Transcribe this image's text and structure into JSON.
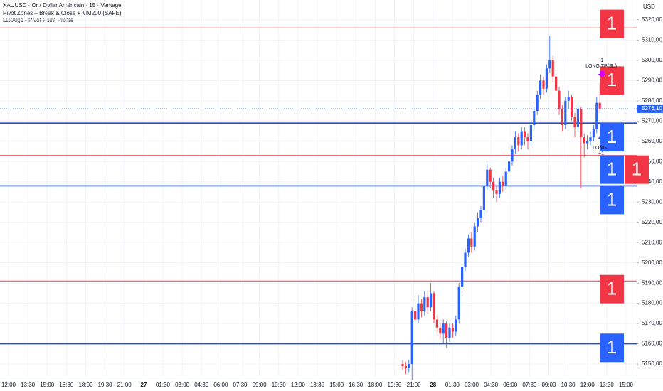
{
  "chart_data": {
    "type": "candlestick",
    "legend": [
      "XAUUSD · Or / Dollar Américain · 15 · Vantage",
      "Pivot Zones – Break & Close + MM200 (SAFE)",
      "LuxAlgo - Pivot Point Profile"
    ],
    "currency": "USD",
    "up_color": "#2962ff",
    "down_color": "#f23645",
    "ylim": [
      5143.7,
      5329.8
    ],
    "yticks": [
      {
        "value": 5150,
        "label": "5150,00"
      },
      {
        "value": 5160,
        "label": "5160,00"
      },
      {
        "value": 5170,
        "label": "5170,00"
      },
      {
        "value": 5180,
        "label": "5180,00"
      },
      {
        "value": 5190,
        "label": "5190,00"
      },
      {
        "value": 5200,
        "label": "5200,00"
      },
      {
        "value": 5210,
        "label": "5210,00"
      },
      {
        "value": 5220,
        "label": "5220,00"
      },
      {
        "value": 5230,
        "label": "5230,00"
      },
      {
        "value": 5240,
        "label": "5240,00"
      },
      {
        "value": 5250,
        "label": "5250,00"
      },
      {
        "value": 5260,
        "label": "5260,00"
      },
      {
        "value": 5270,
        "label": "5270,00"
      },
      {
        "value": 5280,
        "label": "5280,00"
      },
      {
        "value": 5290,
        "label": "5290,00"
      },
      {
        "value": 5300,
        "label": "5300,00"
      },
      {
        "value": 5310,
        "label": "5310,00"
      },
      {
        "value": 5320,
        "label": "5320,00"
      }
    ],
    "xticks": [
      "12:00",
      "13:30",
      "15:00",
      "16:30",
      "18:00",
      "19:30",
      "21:00",
      "27",
      "01:30",
      "03:00",
      "04:30",
      "06:00",
      "07:30",
      "09:00",
      "10:30",
      "12:00",
      "13:30",
      "15:00",
      "16:30",
      "18:00",
      "19:30",
      "21:00",
      "28",
      "01:30",
      "03:00",
      "04:30",
      "06:00",
      "07:30",
      "09:00",
      "10:30",
      "12:00",
      "13:30",
      "15:00"
    ],
    "grid": true,
    "open": [
      5150,
      5149,
      5148,
      5150,
      5176,
      5172,
      5180,
      5176,
      5183,
      5178,
      5185,
      5172,
      5168,
      5165,
      5170,
      5163,
      5168,
      5166,
      5172,
      5188,
      5198,
      5205,
      5212,
      5208,
      5218,
      5222,
      5226,
      5238,
      5246,
      5240,
      5236,
      5234,
      5240,
      5238,
      5245,
      5250,
      5256,
      5262,
      5258,
      5265,
      5262,
      5260,
      5268,
      5275,
      5283,
      5290,
      5286,
      5296,
      5300,
      5292,
      5285,
      5276,
      5268,
      5280,
      5282,
      5272,
      5267,
      5276,
      5262,
      5259,
      5260,
      5262,
      5266,
      5279
    ],
    "high": [
      5152,
      5151,
      5152,
      5178,
      5182,
      5184,
      5182,
      5186,
      5186,
      5190,
      5186,
      5175,
      5170,
      5172,
      5171,
      5170,
      5170,
      5174,
      5190,
      5200,
      5207,
      5214,
      5215,
      5220,
      5225,
      5228,
      5240,
      5249,
      5247,
      5242,
      5238,
      5242,
      5243,
      5247,
      5252,
      5258,
      5265,
      5264,
      5267,
      5267,
      5264,
      5270,
      5277,
      5285,
      5293,
      5292,
      5298,
      5312,
      5302,
      5294,
      5287,
      5278,
      5282,
      5285,
      5283,
      5274,
      5278,
      5277,
      5264,
      5263,
      5265,
      5268,
      5282,
      5289
    ],
    "low": [
      5147,
      5145,
      5146,
      5142,
      5170,
      5170,
      5173,
      5174,
      5175,
      5176,
      5170,
      5165,
      5162,
      5160,
      5158,
      5161,
      5163,
      5164,
      5170,
      5185,
      5196,
      5203,
      5205,
      5206,
      5215,
      5220,
      5224,
      5236,
      5237,
      5232,
      5230,
      5232,
      5235,
      5236,
      5243,
      5248,
      5254,
      5255,
      5256,
      5258,
      5256,
      5258,
      5266,
      5273,
      5281,
      5283,
      5284,
      5294,
      5289,
      5282,
      5273,
      5265,
      5266,
      5276,
      5270,
      5262,
      5265,
      5237,
      5252,
      5256,
      5258,
      5260,
      5264,
      5274
    ],
    "close": [
      5149,
      5148,
      5150,
      5176,
      5172,
      5180,
      5176,
      5183,
      5178,
      5185,
      5172,
      5168,
      5165,
      5170,
      5163,
      5168,
      5166,
      5172,
      5188,
      5198,
      5205,
      5212,
      5208,
      5218,
      5222,
      5226,
      5238,
      5246,
      5240,
      5236,
      5234,
      5240,
      5238,
      5245,
      5250,
      5256,
      5262,
      5258,
      5265,
      5262,
      5260,
      5268,
      5275,
      5283,
      5290,
      5286,
      5296,
      5300,
      5292,
      5285,
      5276,
      5268,
      5280,
      5282,
      5272,
      5267,
      5276,
      5262,
      5259,
      5260,
      5262,
      5266,
      5279,
      5276.1
    ],
    "last_price": {
      "value": 5276.1,
      "label": "5276,10"
    },
    "levels": [
      {
        "price": 5316,
        "color": "#f23645"
      },
      {
        "price": 5269,
        "color": "#1e4fd8"
      },
      {
        "price": 5253,
        "color": "#f23645"
      },
      {
        "price": 5238,
        "color": "#1e4fd8"
      },
      {
        "price": 5191,
        "color": "#f23645"
      },
      {
        "price": 5160,
        "color": "#1e4fd8"
      }
    ],
    "zones": [
      {
        "price": 5318,
        "label": "1",
        "color": "#f23645"
      },
      {
        "price": 5290,
        "label": "1",
        "color": "#f23645"
      },
      {
        "price": 5262,
        "label": "1",
        "color": "#2962ff"
      },
      {
        "price": 5246,
        "label": "1",
        "color": "#2962ff"
      },
      {
        "price": 5246,
        "label": "1",
        "color": "#f23645"
      },
      {
        "price": 5231,
        "label": "1",
        "color": "#2962ff"
      },
      {
        "price": 5187,
        "label": "1",
        "color": "#f23645"
      },
      {
        "price": 5158,
        "label": "1",
        "color": "#2962ff"
      }
    ],
    "annotations": [
      "-1",
      "LONG TP(SL)",
      "LONG",
      "+1"
    ]
  }
}
